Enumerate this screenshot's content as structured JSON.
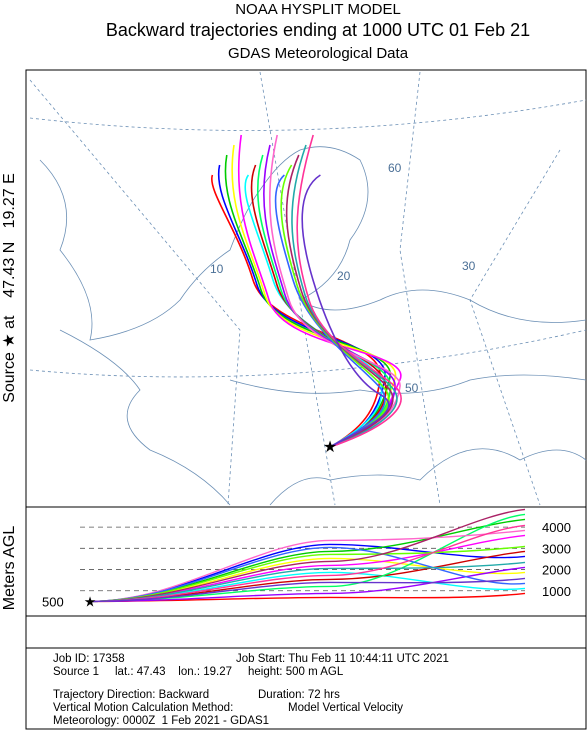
{
  "header": {
    "line1": "NOAA HYSPLIT MODEL",
    "line2": "Backward trajectories ending at 1000 UTC 01 Feb 21",
    "line3": "GDAS Meteorological Data"
  },
  "side_label": "Source ★ at    47.43 N   19.27 E",
  "map": {
    "grid_labels": [
      "60",
      "50",
      "10",
      "20",
      "30"
    ]
  },
  "height_panel": {
    "y_label": "Meters AGL",
    "start_height": 500,
    "start_label": "500",
    "ylim": [
      0,
      4900
    ],
    "yticks": [
      1000,
      2000,
      3000,
      4000
    ]
  },
  "footer": {
    "job_id": "Job ID: 17358",
    "job_start": "Job Start: Thu Feb 11 10:44:11 UTC 2021",
    "source": "Source 1     lat.: 47.43    lon.: 19.27     height: 500 m AGL",
    "direction": "Trajectory Direction: Backward",
    "duration": "Duration: 72 hrs",
    "vertical_method": "Vertical Motion Calculation Method:",
    "vertical_value": "Model Vertical Velocity",
    "meteorology": "Meteorology: 0000Z  1 Feb 2021 - GDAS1"
  }
}
